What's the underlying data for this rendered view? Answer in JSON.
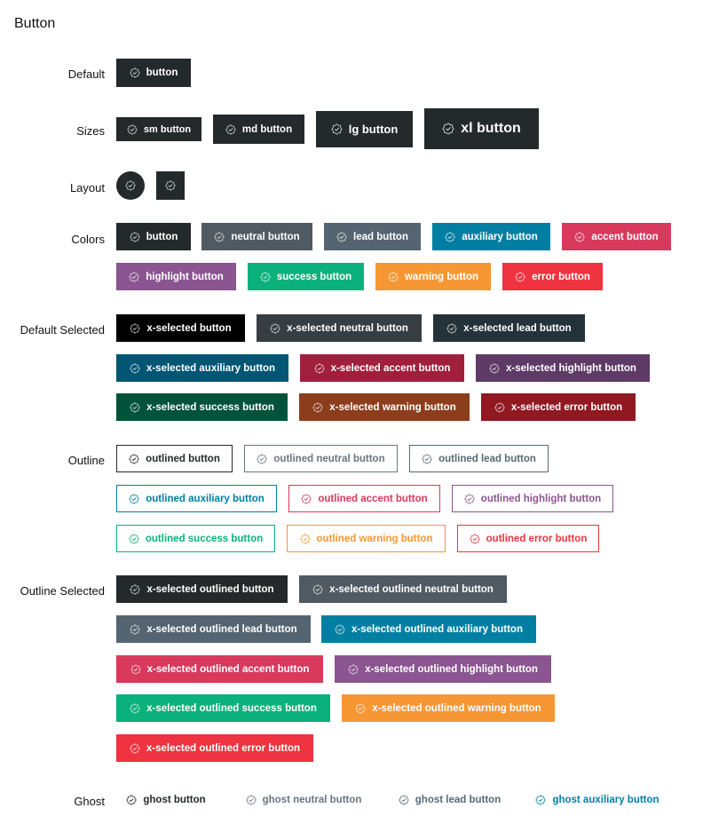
{
  "page": {
    "title": "Button"
  },
  "labels": {
    "default": "Default",
    "sizes": "Sizes",
    "layout": "Layout",
    "colors": "Colors",
    "default_selected": "Default Selected",
    "outline": "Outline",
    "outline_selected": "Outline Selected",
    "ghost": "Ghost"
  },
  "icon": "check-badge-icon",
  "buttons": {
    "default": {
      "label": "button"
    },
    "sizes": [
      {
        "label": "sm button"
      },
      {
        "label": "md button"
      },
      {
        "label": "lg button"
      },
      {
        "label": "xl button"
      }
    ],
    "colors": [
      {
        "label": "button",
        "color": "#24292b"
      },
      {
        "label": "neutral button",
        "color": "#505a62"
      },
      {
        "label": "lead button",
        "color": "#546470"
      },
      {
        "label": "auxiliary button",
        "color": "#007fa3"
      },
      {
        "label": "accent button",
        "color": "#d8395d"
      },
      {
        "label": "highlight button",
        "color": "#8a5590"
      },
      {
        "label": "success button",
        "color": "#0bb17a"
      },
      {
        "label": "warning button",
        "color": "#f79733"
      },
      {
        "label": "error button",
        "color": "#ef3340"
      }
    ],
    "default_selected": [
      {
        "label": "x-selected button",
        "color": "#000000"
      },
      {
        "label": "x-selected neutral button",
        "color": "#363d43"
      },
      {
        "label": "x-selected lead button",
        "color": "#243239"
      },
      {
        "label": "x-selected auxiliary button",
        "color": "#005673"
      },
      {
        "label": "x-selected accent button",
        "color": "#a01f3c"
      },
      {
        "label": "x-selected highlight button",
        "color": "#5e3a66"
      },
      {
        "label": "x-selected success button",
        "color": "#00533a"
      },
      {
        "label": "x-selected warning button",
        "color": "#8c3d1b"
      },
      {
        "label": "x-selected error button",
        "color": "#901820"
      }
    ],
    "outline": [
      {
        "label": "outlined button",
        "color": "#24292b"
      },
      {
        "label": "outlined neutral button",
        "color": "#6a7580"
      },
      {
        "label": "outlined lead button",
        "color": "#566a74"
      },
      {
        "label": "outlined auxiliary button",
        "color": "#007fa3"
      },
      {
        "label": "outlined accent button",
        "color": "#d8395d"
      },
      {
        "label": "outlined highlight button",
        "color": "#8a5590"
      },
      {
        "label": "outlined success button",
        "color": "#0bb17a"
      },
      {
        "label": "outlined warning button",
        "color": "#f79733"
      },
      {
        "label": "outlined error button",
        "color": "#ef3340"
      }
    ],
    "outline_selected": [
      {
        "label": "x-selected outlined button",
        "color": "#24292b"
      },
      {
        "label": "x-selected outlined neutral button",
        "color": "#505a62"
      },
      {
        "label": "x-selected outlined lead button",
        "color": "#546470"
      },
      {
        "label": "x-selected outlined auxiliary button",
        "color": "#007fa3"
      },
      {
        "label": "x-selected outlined accent button",
        "color": "#d8395d"
      },
      {
        "label": "x-selected outlined highlight button",
        "color": "#8a5590"
      },
      {
        "label": "x-selected outlined success button",
        "color": "#0bb17a"
      },
      {
        "label": "x-selected outlined warning button",
        "color": "#f79733"
      },
      {
        "label": "x-selected outlined error button",
        "color": "#ef3340"
      }
    ],
    "ghost": [
      {
        "label": "ghost button",
        "color": "#24292b"
      },
      {
        "label": "ghost neutral button",
        "color": "#6a7580"
      },
      {
        "label": "ghost lead button",
        "color": "#566a74"
      },
      {
        "label": "ghost auxiliary button",
        "color": "#007fa3"
      }
    ]
  }
}
